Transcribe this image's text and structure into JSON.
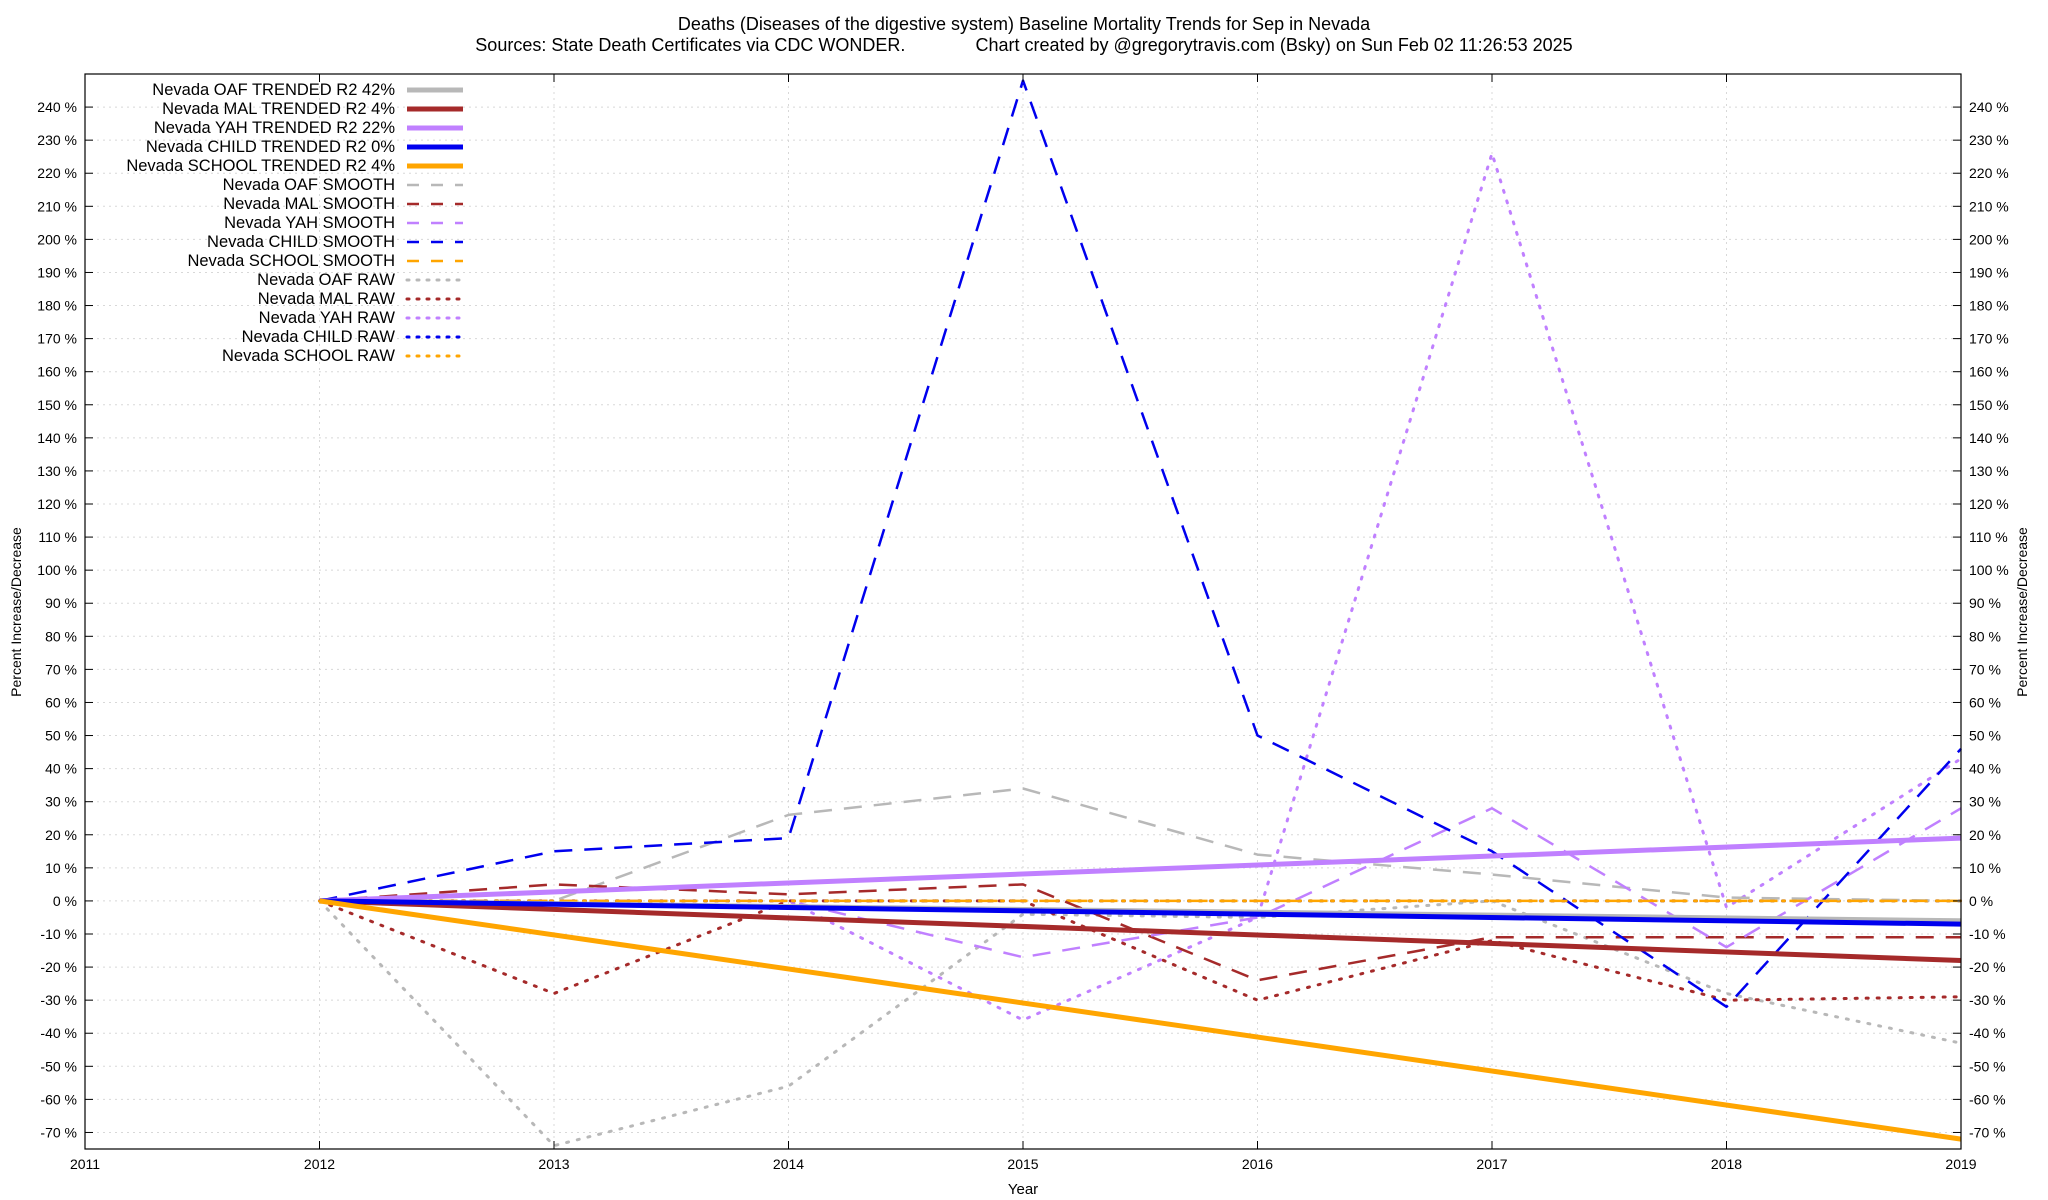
{
  "chart_data": {
    "type": "line",
    "title": "Deaths (Diseases of the digestive system)  Baseline Mortality Trends for Sep in Nevada",
    "subtitle": "Sources: State Death Certificates via CDC WONDER.              Chart created by @gregorytravis.com (Bsky) on Sun Feb 02 11:26:53 2025",
    "xlabel": "Year",
    "ylabel": "Percent Increase/Decrease",
    "y2label": "Percent Increase/Decrease",
    "xlim": [
      2011,
      2019
    ],
    "ylim": [
      -75,
      250
    ],
    "x_ticks": [
      "2011",
      "2012",
      "2013",
      "2014",
      "2015",
      "2016",
      "2017",
      "2018",
      "2019"
    ],
    "y_ticks": [
      "240 %",
      "230 %",
      "220 %",
      "210 %",
      "200 %",
      "190 %",
      "180 %",
      "170 %",
      "160 %",
      "150 %",
      "140 %",
      "130 %",
      "120 %",
      "110 %",
      "100 %",
      "90 %",
      "80 %",
      "70 %",
      "60 %",
      "50 %",
      "40 %",
      "30 %",
      "20 %",
      "10 %",
      "0 %",
      "-10 %",
      "-20 %",
      "-30 %",
      "-40 %",
      "-50 %",
      "-60 %",
      "-70 %"
    ],
    "grid": true,
    "legend_position": "top-left",
    "series": [
      {
        "name": "Nevada OAF TRENDED R2  42%",
        "style": "solid",
        "color": "#b8b8b8",
        "x": [
          2012,
          2019
        ],
        "y": [
          0,
          -6
        ]
      },
      {
        "name": "Nevada MAL TRENDED R2  4%",
        "style": "solid",
        "color": "#a52a2a",
        "x": [
          2012,
          2019
        ],
        "y": [
          0,
          -18
        ]
      },
      {
        "name": "Nevada YAH TRENDED R2  22%",
        "style": "solid",
        "color": "#c080ff",
        "x": [
          2012,
          2019
        ],
        "y": [
          0,
          19
        ]
      },
      {
        "name": "Nevada CHILD TRENDED R2  0%",
        "style": "solid",
        "color": "#0000ee",
        "x": [
          2012,
          2019
        ],
        "y": [
          0,
          -7
        ]
      },
      {
        "name": "Nevada SCHOOL TRENDED R2  4%",
        "style": "solid",
        "color": "#ffa500",
        "x": [
          2012,
          2019
        ],
        "y": [
          0,
          -72
        ]
      },
      {
        "name": "Nevada OAF SMOOTH",
        "style": "dashed",
        "color": "#b8b8b8",
        "x": [
          2012,
          2013,
          2014,
          2015,
          2016,
          2017,
          2018,
          2019
        ],
        "y": [
          0,
          0,
          26,
          34,
          14,
          8,
          1,
          0
        ]
      },
      {
        "name": "Nevada MAL SMOOTH",
        "style": "dashed",
        "color": "#a52a2a",
        "x": [
          2012,
          2013,
          2014,
          2015,
          2016,
          2017,
          2018,
          2019
        ],
        "y": [
          0,
          5,
          2,
          5,
          -24,
          -11,
          -11,
          -11
        ]
      },
      {
        "name": "Nevada YAH SMOOTH",
        "style": "dashed",
        "color": "#c080ff",
        "x": [
          2012,
          2013,
          2014,
          2015,
          2016,
          2017,
          2018,
          2019
        ],
        "y": [
          0,
          0,
          0,
          -17,
          -5,
          28,
          -14,
          28
        ]
      },
      {
        "name": "Nevada CHILD SMOOTH",
        "style": "dashed",
        "color": "#0000ee",
        "x": [
          2012,
          2013,
          2014,
          2015,
          2016,
          2017,
          2018,
          2019
        ],
        "y": [
          0,
          15,
          19,
          248,
          50,
          15,
          -32,
          46
        ]
      },
      {
        "name": "Nevada SCHOOL SMOOTH",
        "style": "dashed",
        "color": "#ffa500",
        "x": [
          2012,
          2019
        ],
        "y": [
          0,
          0
        ]
      },
      {
        "name": "Nevada OAF RAW",
        "style": "dotted",
        "color": "#b8b8b8",
        "x": [
          2012,
          2013,
          2014,
          2015,
          2016,
          2017,
          2018,
          2019
        ],
        "y": [
          0,
          -74,
          -56,
          -4,
          -5,
          0,
          -28,
          -43
        ]
      },
      {
        "name": "Nevada MAL RAW",
        "style": "dotted",
        "color": "#a52a2a",
        "x": [
          2012,
          2013,
          2014,
          2015,
          2016,
          2017,
          2018,
          2019
        ],
        "y": [
          0,
          -28,
          0,
          0,
          -30,
          -12,
          -30,
          -29
        ]
      },
      {
        "name": "Nevada YAH RAW",
        "style": "dotted",
        "color": "#c080ff",
        "x": [
          2012,
          2013,
          2014,
          2015,
          2016,
          2017,
          2018,
          2019
        ],
        "y": [
          0,
          0,
          0,
          -36,
          -5,
          226,
          -2,
          43
        ]
      },
      {
        "name": "Nevada CHILD RAW",
        "style": "dotted",
        "color": "#0000ee",
        "x": [
          2012,
          2013,
          2014,
          2015,
          2016,
          2017,
          2018,
          2019
        ],
        "y": [
          0,
          0,
          0,
          0,
          0,
          0,
          0,
          0
        ]
      },
      {
        "name": "Nevada SCHOOL RAW",
        "style": "dotted",
        "color": "#ffa500",
        "x": [
          2012,
          2019
        ],
        "y": [
          0,
          0
        ]
      }
    ]
  }
}
